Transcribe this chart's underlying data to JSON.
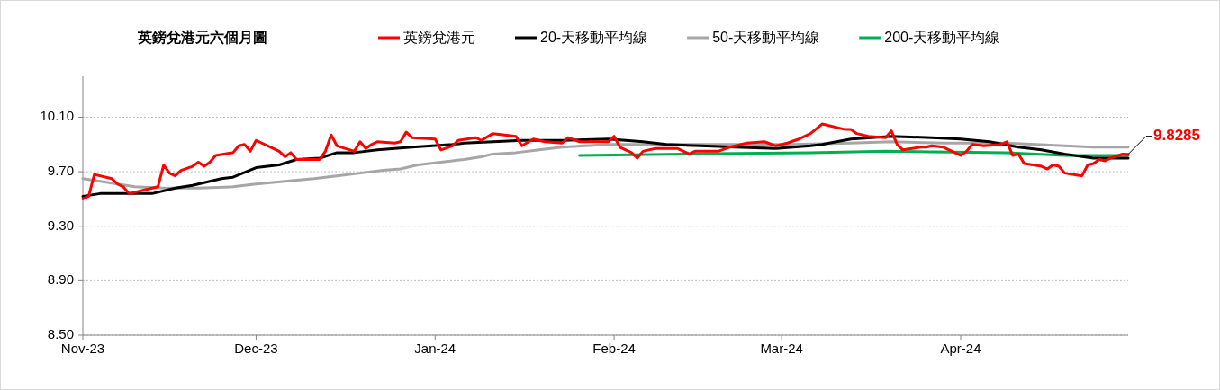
{
  "chart_data": {
    "type": "line",
    "title": "英鎊兌港元六個月圖",
    "legend": "top",
    "grid": "y",
    "marker": "none",
    "line_style": "solid",
    "xlim": [
      "2023-11-01",
      "2024-04-30"
    ],
    "xticks": [
      {
        "value": "2023-11-01",
        "label": "Nov-23"
      },
      {
        "value": "2023-12-01",
        "label": "Dec-23"
      },
      {
        "value": "2024-01-01",
        "label": "Jan-24"
      },
      {
        "value": "2024-02-01",
        "label": "Feb-24"
      },
      {
        "value": "2024-03-01",
        "label": "Mar-24"
      },
      {
        "value": "2024-04-01",
        "label": "Apr-24"
      }
    ],
    "ylim": [
      8.5,
      10.4
    ],
    "yticks": [
      {
        "value": 8.5,
        "label": "8.50"
      },
      {
        "value": 8.9,
        "label": "8.90"
      },
      {
        "value": 9.3,
        "label": "9.30"
      },
      {
        "value": 9.7,
        "label": "9.70"
      },
      {
        "value": 10.1,
        "label": "10.10"
      }
    ],
    "annotations": [
      {
        "text": "9.8285",
        "x": "2024-04-30",
        "y": 9.8285
      }
    ],
    "series": [
      {
        "name": "英鎊兌港元",
        "color": "#ff0000",
        "x": [
          "2023-11-01",
          "2023-11-02",
          "2023-11-03",
          "2023-11-06",
          "2023-11-07",
          "2023-11-08",
          "2023-11-09",
          "2023-11-13",
          "2023-11-14",
          "2023-11-15",
          "2023-11-16",
          "2023-11-17",
          "2023-11-18",
          "2023-11-20",
          "2023-11-21",
          "2023-11-22",
          "2023-11-23",
          "2023-11-24",
          "2023-11-27",
          "2023-11-28",
          "2023-11-29",
          "2023-11-30",
          "2023-12-01",
          "2023-12-05",
          "2023-12-06",
          "2023-12-07",
          "2023-12-08",
          "2023-12-12",
          "2023-12-13",
          "2023-12-14",
          "2023-12-15",
          "2023-12-18",
          "2023-12-19",
          "2023-12-20",
          "2023-12-21",
          "2023-12-22",
          "2023-12-25",
          "2023-12-26",
          "2023-12-27",
          "2023-12-28",
          "2024-01-01",
          "2024-01-02",
          "2024-01-04",
          "2024-01-05",
          "2024-01-08",
          "2024-01-09",
          "2024-01-11",
          "2024-01-15",
          "2024-01-16",
          "2024-01-18",
          "2024-01-20",
          "2024-01-23",
          "2024-01-24",
          "2024-01-26",
          "2024-01-31",
          "2024-02-01",
          "2024-02-02",
          "2024-02-04",
          "2024-02-05",
          "2024-02-06",
          "2024-02-08",
          "2024-02-12",
          "2024-02-14",
          "2024-02-15",
          "2024-02-19",
          "2024-02-21",
          "2024-02-24",
          "2024-02-27",
          "2024-02-29",
          "2024-03-02",
          "2024-03-04",
          "2024-03-05",
          "2024-03-06",
          "2024-03-08",
          "2024-03-12",
          "2024-03-13",
          "2024-03-14",
          "2024-03-16",
          "2024-03-19",
          "2024-03-20",
          "2024-03-21",
          "2024-03-22",
          "2024-03-25",
          "2024-03-26",
          "2024-03-27",
          "2024-03-29",
          "2024-03-30",
          "2024-04-01",
          "2024-04-02",
          "2024-04-03",
          "2024-04-05",
          "2024-04-08",
          "2024-04-09",
          "2024-04-10",
          "2024-04-11",
          "2024-04-12",
          "2024-04-15",
          "2024-04-16",
          "2024-04-17",
          "2024-04-18",
          "2024-04-19",
          "2024-04-22",
          "2024-04-23",
          "2024-04-24",
          "2024-04-25",
          "2024-04-26",
          "2024-04-27",
          "2024-04-29",
          "2024-04-30"
        ],
        "values": [
          9.5,
          9.52,
          9.68,
          9.65,
          9.61,
          9.59,
          9.54,
          9.58,
          9.59,
          9.75,
          9.69,
          9.67,
          9.71,
          9.74,
          9.77,
          9.74,
          9.77,
          9.82,
          9.84,
          9.89,
          9.9,
          9.85,
          9.93,
          9.85,
          9.81,
          9.84,
          9.79,
          9.79,
          9.85,
          9.97,
          9.89,
          9.85,
          9.92,
          9.87,
          9.9,
          9.92,
          9.91,
          9.92,
          9.99,
          9.95,
          9.94,
          9.86,
          9.89,
          9.93,
          9.95,
          9.93,
          9.98,
          9.96,
          9.89,
          9.94,
          9.92,
          9.91,
          9.95,
          9.92,
          9.92,
          9.96,
          9.88,
          9.84,
          9.8,
          9.85,
          9.87,
          9.87,
          9.83,
          9.85,
          9.85,
          9.88,
          9.91,
          9.92,
          9.89,
          9.91,
          9.94,
          9.96,
          9.98,
          10.05,
          10.01,
          10.01,
          9.98,
          9.96,
          9.95,
          10.0,
          9.9,
          9.86,
          9.88,
          9.88,
          9.89,
          9.88,
          9.86,
          9.82,
          9.85,
          9.9,
          9.89,
          9.9,
          9.92,
          9.82,
          9.83,
          9.76,
          9.74,
          9.72,
          9.75,
          9.74,
          9.69,
          9.67,
          9.75,
          9.76,
          9.79,
          9.78,
          9.8,
          9.83,
          9.8285
        ]
      },
      {
        "name": "20-天移動平均線",
        "color": "#000000",
        "x": [
          "2023-11-01",
          "2023-11-04",
          "2023-11-13",
          "2023-11-17",
          "2023-11-20",
          "2023-11-25",
          "2023-11-27",
          "2023-12-01",
          "2023-12-05",
          "2023-12-08",
          "2023-12-12",
          "2023-12-15",
          "2023-12-18",
          "2023-12-22",
          "2023-12-25",
          "2023-12-28",
          "2024-01-04",
          "2024-01-06",
          "2024-01-11",
          "2024-01-16",
          "2024-01-23",
          "2024-01-31",
          "2024-02-06",
          "2024-02-10",
          "2024-02-16",
          "2024-02-22",
          "2024-02-29",
          "2024-03-06",
          "2024-03-08",
          "2024-03-13",
          "2024-03-20",
          "2024-03-27",
          "2024-04-01",
          "2024-04-06",
          "2024-04-11",
          "2024-04-15",
          "2024-04-19",
          "2024-04-24",
          "2024-04-30"
        ],
        "values": [
          9.52,
          9.54,
          9.54,
          9.58,
          9.6,
          9.65,
          9.66,
          9.73,
          9.75,
          9.79,
          9.8,
          9.84,
          9.84,
          9.86,
          9.87,
          9.88,
          9.9,
          9.91,
          9.92,
          9.93,
          9.93,
          9.94,
          9.92,
          9.9,
          9.89,
          9.88,
          9.87,
          9.89,
          9.9,
          9.94,
          9.96,
          9.95,
          9.94,
          9.92,
          9.88,
          9.86,
          9.83,
          9.8,
          9.8
        ]
      },
      {
        "name": "50-天移動平均線",
        "color": "#a6a6a6",
        "x": [
          "2023-11-01",
          "2023-11-04",
          "2023-11-07",
          "2023-11-10",
          "2023-11-15",
          "2023-11-21",
          "2023-11-27",
          "2023-12-01",
          "2023-12-06",
          "2023-12-11",
          "2023-12-15",
          "2023-12-19",
          "2023-12-23",
          "2023-12-26",
          "2023-12-29",
          "2024-01-04",
          "2024-01-06",
          "2024-01-09",
          "2024-01-11",
          "2024-01-15",
          "2024-01-19",
          "2024-01-23",
          "2024-01-27",
          "2024-01-31",
          "2024-02-11",
          "2024-02-22",
          "2024-03-03",
          "2024-03-13",
          "2024-03-20",
          "2024-03-29",
          "2024-04-09",
          "2024-04-14",
          "2024-04-19",
          "2024-04-24",
          "2024-04-30"
        ],
        "values": [
          9.65,
          9.63,
          9.61,
          9.59,
          9.58,
          9.58,
          9.59,
          9.61,
          9.63,
          9.65,
          9.67,
          9.69,
          9.71,
          9.72,
          9.75,
          9.78,
          9.79,
          9.81,
          9.83,
          9.84,
          9.86,
          9.88,
          9.89,
          9.9,
          9.9,
          9.9,
          9.9,
          9.91,
          9.92,
          9.91,
          9.91,
          9.9,
          9.89,
          9.88,
          9.88
        ]
      },
      {
        "name": "200-天移動平均線",
        "color": "#00b050",
        "x": [
          "2024-01-26",
          "2024-02-13",
          "2024-03-06",
          "2024-03-19",
          "2024-04-09",
          "2024-04-19",
          "2024-04-30"
        ],
        "values": [
          9.82,
          9.83,
          9.84,
          9.85,
          9.84,
          9.82,
          9.82
        ]
      }
    ]
  }
}
